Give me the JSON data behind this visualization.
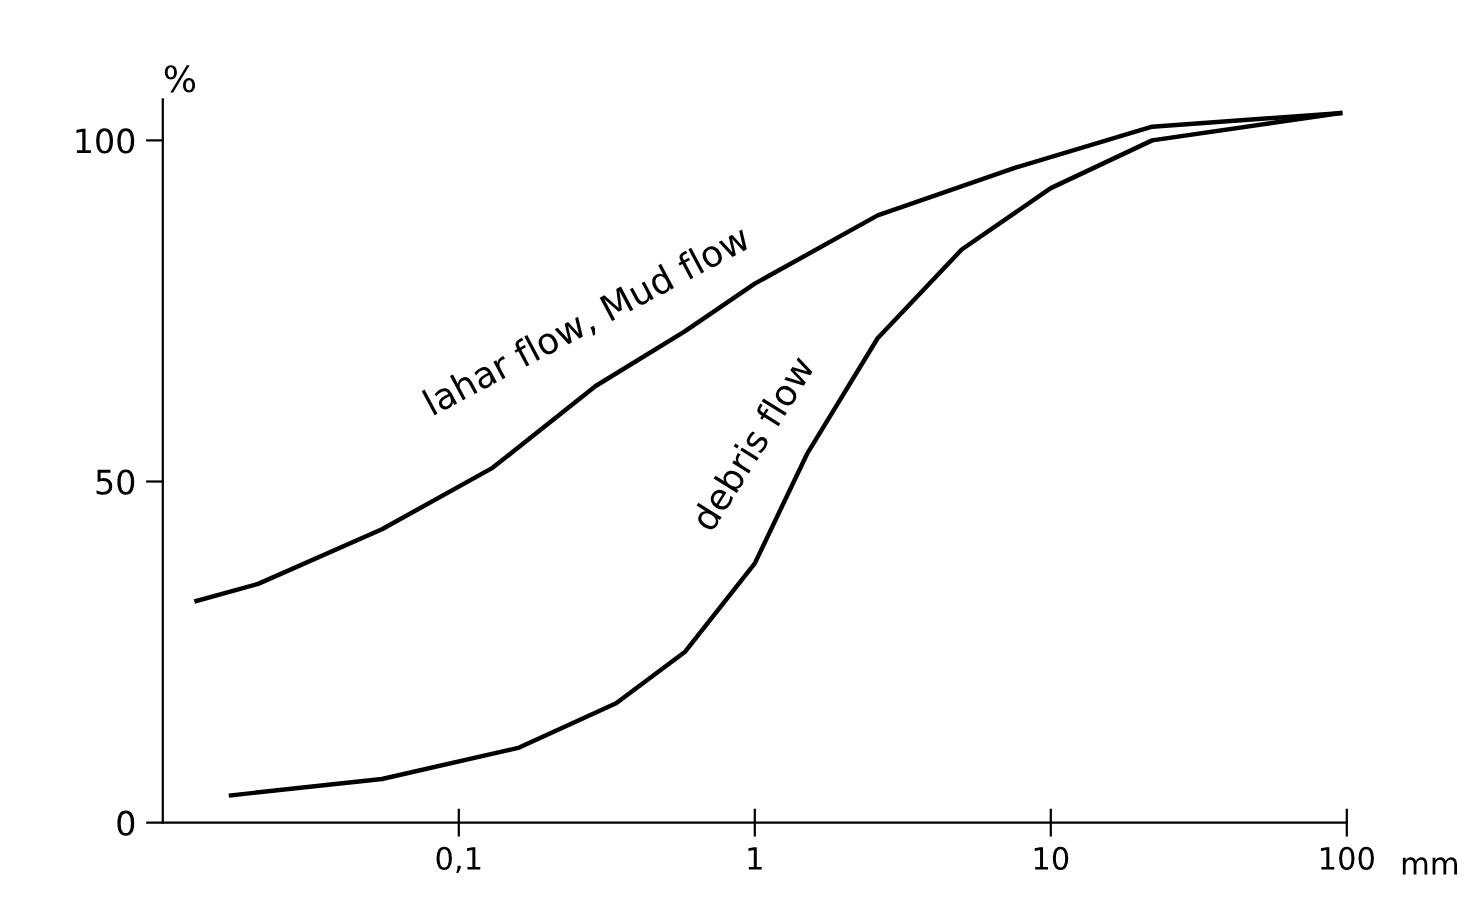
{
  "chart_data": {
    "type": "line",
    "ylabel": "%",
    "xlabel": "mm",
    "log": "x",
    "xlim": [
      0.01,
      100
    ],
    "xticks": [
      {
        "value": 0.1,
        "label": "0,1"
      },
      1,
      10,
      100
    ],
    "ylim": [
      0,
      106
    ],
    "yticks": [
      0,
      50,
      100
    ],
    "grid": false,
    "legend": false,
    "marker": "none",
    "line_style": "solid",
    "series": [
      {
        "name": "lahar flow, Mud flow",
        "color": "#000000",
        "x": [
          0.013,
          0.021,
          0.055,
          0.13,
          0.29,
          0.58,
          1.0,
          2.6,
          7.6,
          22,
          95
        ],
        "values": [
          32.5,
          35,
          43,
          52,
          64,
          72,
          79,
          89,
          96,
          102,
          104
        ]
      },
      {
        "name": "debris flow",
        "color": "#000000",
        "x": [
          0.017,
          0.055,
          0.16,
          0.34,
          0.58,
          1.0,
          1.5,
          2.6,
          5.0,
          10,
          22,
          95
        ],
        "values": [
          4,
          6.4,
          11,
          17.5,
          25,
          38,
          54,
          71,
          84,
          93,
          100,
          104
        ]
      }
    ]
  }
}
